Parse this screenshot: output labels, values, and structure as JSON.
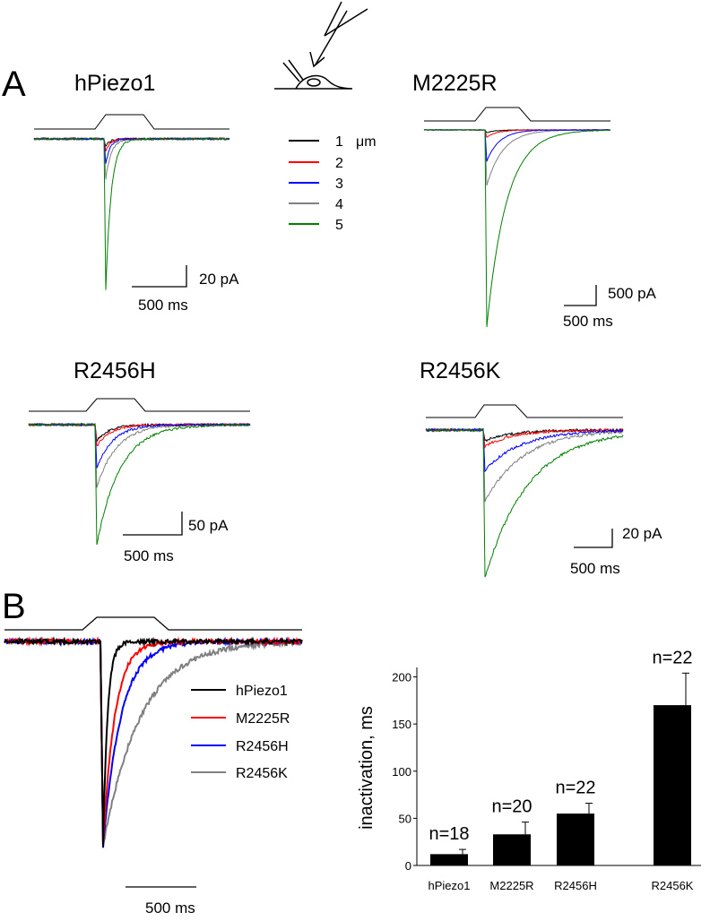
{
  "panel_labels": [
    "A",
    "B"
  ],
  "colors": {
    "step1": "#000000",
    "step2": "#ff0000",
    "step3": "#0000ff",
    "step4": "#808080",
    "step5": "#008000",
    "hPiezo1": "#000000",
    "M2225R": "#ff0000",
    "R2456H": "#0000ff",
    "R2456K": "#808080",
    "bar": "#000000"
  },
  "panelA": {
    "stimulus_legend": {
      "unit": "μm",
      "items": [
        {
          "label": "1",
          "color": "#000000"
        },
        {
          "label": "2",
          "color": "#ff0000"
        },
        {
          "label": "3",
          "color": "#0000ff"
        },
        {
          "label": "4",
          "color": "#808080"
        },
        {
          "label": "5",
          "color": "#008000"
        }
      ]
    },
    "traces": [
      {
        "title": "hPiezo1",
        "current_scale": "20 pA",
        "time_scale": "500 ms"
      },
      {
        "title": "M2225R",
        "current_scale": "500 pA",
        "time_scale": "500 ms"
      },
      {
        "title": "R2456H",
        "current_scale": "50 pA",
        "time_scale": "500 ms"
      },
      {
        "title": "R2456K",
        "current_scale": "20 pA",
        "time_scale": "500 ms"
      }
    ]
  },
  "panelB": {
    "legend": [
      "hPiezo1",
      "M2225R",
      "R2456H",
      "R2456K"
    ],
    "time_scale": "500 ms"
  },
  "chart_data": {
    "type": "bar",
    "categories": [
      "hPiezo1",
      "M2225R",
      "R2456H",
      "R2456K"
    ],
    "values": [
      12,
      33,
      55,
      170
    ],
    "errors": [
      5,
      13,
      11,
      34
    ],
    "annotations": [
      "n=18",
      "n=20",
      "n=22",
      "n=22"
    ],
    "ylabel": "inactivation, ms",
    "xlabel": "",
    "title": "",
    "ylim": [
      0,
      210
    ],
    "yticks": [
      0,
      50,
      100,
      150,
      200
    ],
    "ytick_labels": [
      "0",
      "50",
      "100",
      "150",
      "200"
    ]
  }
}
